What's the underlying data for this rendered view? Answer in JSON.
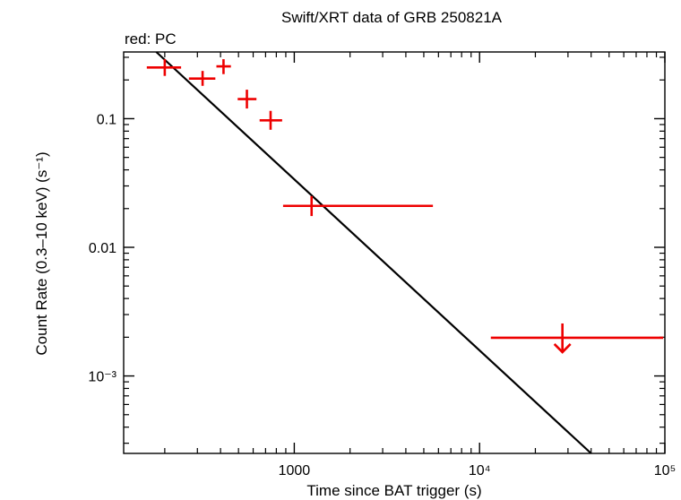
{
  "chart_data": {
    "type": "scatter",
    "title": "Swift/XRT data of GRB 250821A",
    "legend": "red: PC",
    "xlabel": "Time since BAT trigger (s)",
    "ylabel": "Count Rate (0.3–10 keV) (s⁻¹)",
    "x_scale": "log",
    "y_scale": "log",
    "xlim": [
      120,
      100000
    ],
    "ylim": [
      0.00025,
      0.33
    ],
    "x_ticks": [
      {
        "value": 1000,
        "label": "1000"
      },
      {
        "value": 10000,
        "label": "10⁴"
      },
      {
        "value": 100000,
        "label": "10⁵"
      }
    ],
    "y_ticks": [
      {
        "value": 0.1,
        "label": "0.1"
      },
      {
        "value": 0.01,
        "label": "0.01"
      },
      {
        "value": 0.001,
        "label": "10⁻³"
      }
    ],
    "series": [
      {
        "name": "PC",
        "color": "#ee0000",
        "points": [
          {
            "x": 200,
            "y": 0.25,
            "x_lo": 160,
            "x_hi": 245,
            "y_lo": 0.215,
            "y_hi": 0.29
          },
          {
            "x": 320,
            "y": 0.205,
            "x_lo": 270,
            "x_hi": 375,
            "y_lo": 0.18,
            "y_hi": 0.235
          },
          {
            "x": 415,
            "y": 0.255,
            "x_lo": 380,
            "x_hi": 455,
            "y_lo": 0.222,
            "y_hi": 0.29
          },
          {
            "x": 555,
            "y": 0.142,
            "x_lo": 495,
            "x_hi": 625,
            "y_lo": 0.12,
            "y_hi": 0.168
          },
          {
            "x": 745,
            "y": 0.097,
            "x_lo": 650,
            "x_hi": 860,
            "y_lo": 0.082,
            "y_hi": 0.115
          },
          {
            "x": 1240,
            "y": 0.021,
            "x_lo": 870,
            "x_hi": 5600,
            "y_lo": 0.0175,
            "y_hi": 0.025
          }
        ],
        "upper_limits": [
          {
            "x": 28000,
            "y": 0.00198,
            "x_lo": 11500,
            "x_hi": 98000
          }
        ]
      }
    ],
    "model": {
      "name": "power-law fit",
      "color": "#000000",
      "points": [
        {
          "x": 180,
          "y": 0.33
        },
        {
          "x": 40000,
          "y": 0.00025
        }
      ]
    }
  }
}
